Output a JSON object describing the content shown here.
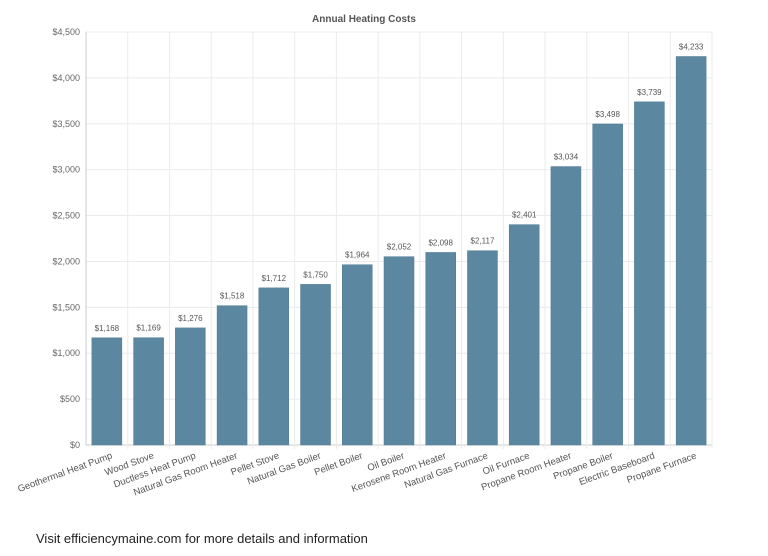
{
  "chart_data": {
    "type": "bar",
    "title": "Annual Heating Costs",
    "xlabel": "",
    "ylabel": "",
    "ylim": [
      0,
      4500
    ],
    "yticks": [
      0,
      500,
      1000,
      1500,
      2000,
      2500,
      3000,
      3500,
      4000,
      4500
    ],
    "ytick_labels": [
      "$0",
      "$500",
      "$1,000",
      "$1,500",
      "$2,000",
      "$2,500",
      "$3,000",
      "$3,500",
      "$4,000",
      "$4,500"
    ],
    "grid": true,
    "bar_color": "#5b87a1",
    "categories": [
      "Geothermal Heat Pump",
      "Wood Stove",
      "Ductless Heat Pump",
      "Natural Gas Room Heater",
      "Pellet Stove",
      "Natural Gas Boiler",
      "Pellet Boiler",
      "Oil Boiler",
      "Kerosene Room Heater",
      "Natural Gas Furnace",
      "Oil Furnace",
      "Propane Room Heater",
      "Propane Boiler",
      "Electric Baseboard",
      "Propane Furnace"
    ],
    "values": [
      1168,
      1169,
      1276,
      1518,
      1712,
      1750,
      1964,
      2052,
      2098,
      2117,
      2401,
      3034,
      3498,
      3739,
      4233
    ],
    "data_labels": [
      "$1,168",
      "$1,169",
      "$1,276",
      "$1,518",
      "$1,712",
      "$1,750",
      "$1,964",
      "$2,052",
      "$2,098",
      "$2,117",
      "$2,401",
      "$3,034",
      "$3,498",
      "$3,739",
      "$4,233"
    ]
  },
  "footer": {
    "text": "Visit efficiencymaine.com for more details and information"
  }
}
